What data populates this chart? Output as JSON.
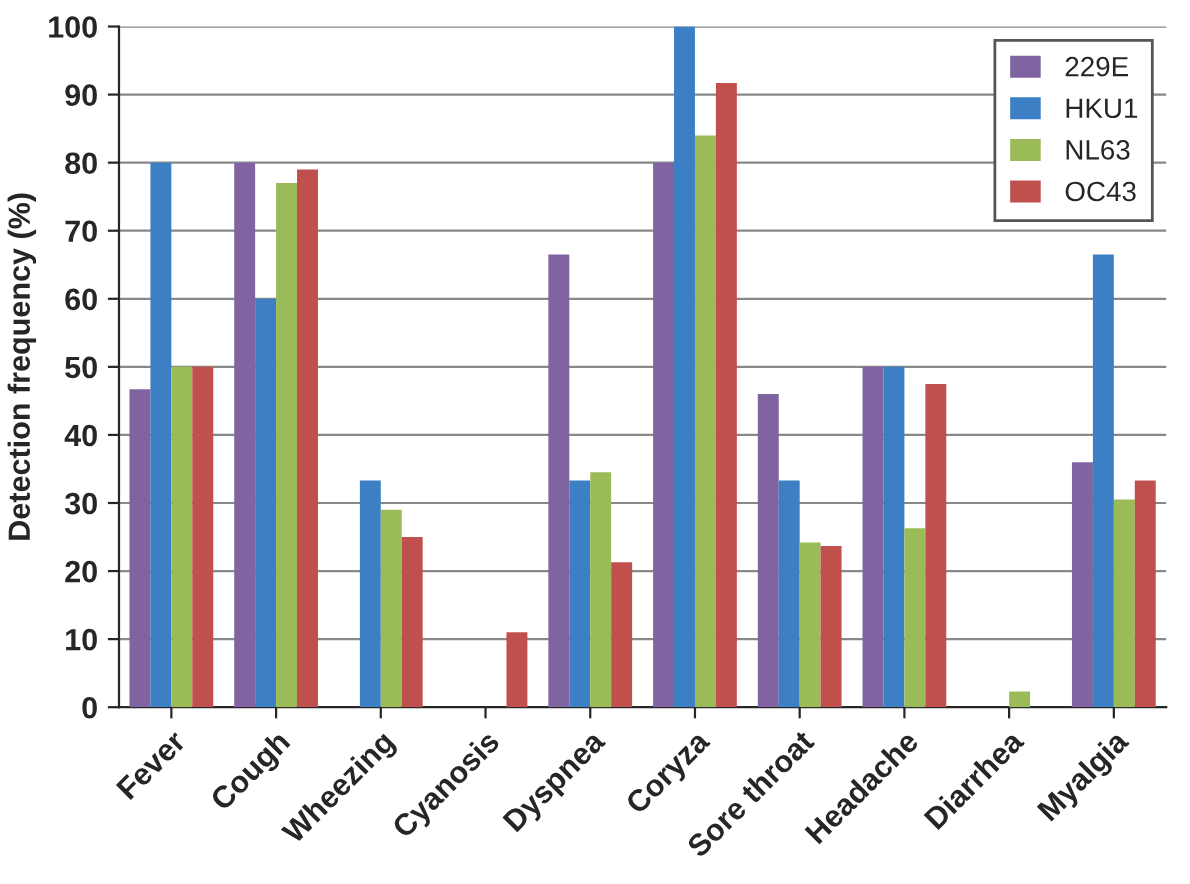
{
  "chart_data": {
    "type": "bar",
    "ylabel": "Detection frequency (%)",
    "categories": [
      "Fever",
      "Cough",
      "Wheezing",
      "Cyanosis",
      "Dyspnea",
      "Coryza",
      "Sore throat",
      "Headache",
      "Diarrhea",
      "Myalgia"
    ],
    "series": [
      {
        "name": "229E",
        "color": "#8064a2",
        "values": [
          46.7,
          80,
          0,
          0,
          66.5,
          80,
          46,
          50,
          0,
          36
        ]
      },
      {
        "name": "HKU1",
        "color": "#3d7fc4",
        "values": [
          80,
          60,
          33.3,
          0,
          33.3,
          100,
          33.3,
          50,
          0,
          66.5
        ]
      },
      {
        "name": "NL63",
        "color": "#9bbb59",
        "values": [
          50,
          77,
          29,
          0,
          34.5,
          84,
          24.2,
          26.3,
          2.3,
          30.5
        ]
      },
      {
        "name": "OC43",
        "color": "#c0504d",
        "values": [
          50,
          79,
          25,
          11,
          21.3,
          91.7,
          23.7,
          47.5,
          0,
          33.3
        ]
      }
    ],
    "ylim": [
      0,
      100
    ],
    "yticks": [
      0,
      10,
      20,
      30,
      40,
      50,
      60,
      70,
      80,
      90,
      100
    ],
    "grid": "y",
    "legend": "top right"
  }
}
